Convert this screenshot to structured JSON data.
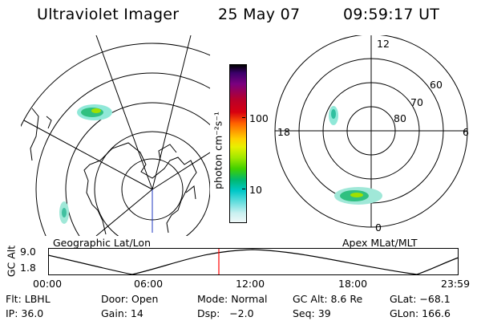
{
  "header": {
    "instrument": "Ultraviolet Imager",
    "date": "25 May 07",
    "time": "09:59:17 UT"
  },
  "colorbar": {
    "label": "photon cm⁻²s⁻¹",
    "ticks": [
      "100",
      "10"
    ],
    "colors": [
      "#000000",
      "#3a006a",
      "#7a0080",
      "#b8002a",
      "#d80010",
      "#ff6000",
      "#ff9a00",
      "#ffd000",
      "#e8f000",
      "#a0e800",
      "#40d000",
      "#00b870",
      "#00c8c8",
      "#70e0e0",
      "#c8f0f0",
      "#f0f8f8"
    ]
  },
  "left_map": {
    "caption": "Geographic Lat/Lon"
  },
  "right_map": {
    "caption": "Apex MLat/MLT",
    "mlt_labels": {
      "top": "12",
      "left": "18",
      "right": "6",
      "bottom": "0"
    },
    "lat_labels": [
      "60",
      "70",
      "80"
    ]
  },
  "altitude_plot": {
    "ylabel": "GC Alt",
    "yticks": [
      "9.0",
      "1.8"
    ],
    "xticks": [
      "00:00",
      "06:00",
      "12:00",
      "18:00",
      "23:59"
    ],
    "current_time_fraction": 0.416
  },
  "info": {
    "filter": "Flt: LBHL",
    "door": "Door: Open",
    "mode": "Mode: Normal",
    "gc_alt": "GC Alt: 8.6 Re",
    "glat": "GLat: −68.1",
    "ip": "IP: 36.0",
    "gain": "Gain: 14",
    "dsp": "Dsp:   −2.0",
    "seq": "Seq: 39",
    "glon": "GLon: 166.6"
  }
}
